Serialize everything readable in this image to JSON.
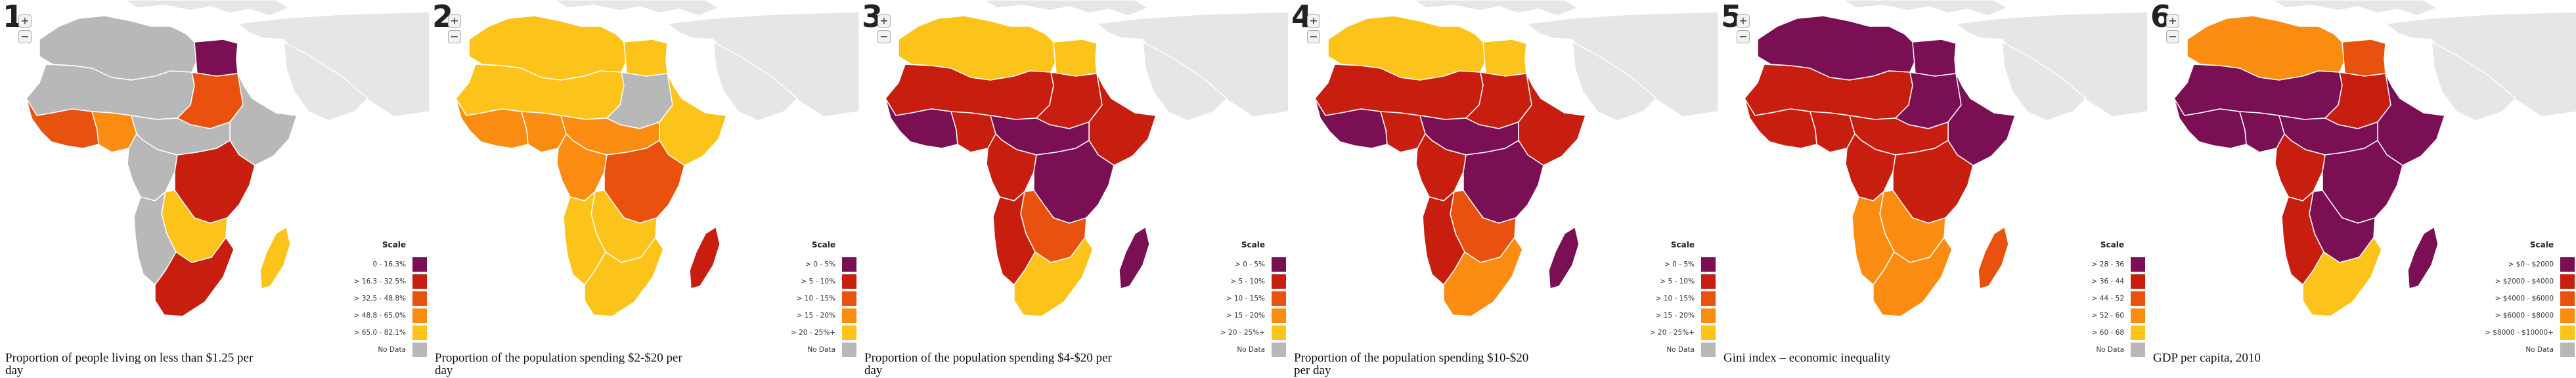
{
  "colors": {
    "ocean": "#ffffff",
    "land": "#e6e6e6",
    "border": "#ffffff",
    "classes": [
      "#7a0f53",
      "#c81e10",
      "#e8520e",
      "#fa8c12",
      "#fcc31a",
      "#b8b8b8"
    ]
  },
  "panels": [
    {
      "number": "1",
      "zoom_in": "+",
      "zoom_out": "−",
      "caption": "Proportion of people living on less than $1.25 per day",
      "legend_title": "Scale",
      "legend": [
        "0 - 16.3%",
        "> 16.3 - 32.5%",
        "> 32.5 - 48.8%",
        "> 48.8 - 65.0%",
        "> 65.0 - 82.1%",
        "No Data"
      ],
      "fills": {
        "maghreb": 5,
        "egypt": 0,
        "sahel": 5,
        "westcoast": 2,
        "nigeria": 3,
        "hornsudan": 2,
        "ethiopia": 5,
        "central": 5,
        "westcentral": 5,
        "eastafrica": 1,
        "southcentral": 4,
        "angolanam": 5,
        "southern": 1,
        "madagascar": 4
      }
    },
    {
      "number": "2",
      "zoom_in": "+",
      "zoom_out": "−",
      "caption": "Proportion of the population spending $2-$20 per day",
      "legend_title": "Scale",
      "legend": [
        "> 0 - 5%",
        "> 5 - 10%",
        "> 10 - 15%",
        "> 15 - 20%",
        "> 20 - 25%+",
        "No Data"
      ],
      "fills": {
        "maghreb": 4,
        "egypt": 4,
        "sahel": 4,
        "westcoast": 3,
        "nigeria": 3,
        "hornsudan": 5,
        "ethiopia": 4,
        "central": 3,
        "westcentral": 3,
        "eastafrica": 2,
        "southcentral": 4,
        "angolanam": 4,
        "southern": 4,
        "madagascar": 1
      }
    },
    {
      "number": "3",
      "zoom_in": "+",
      "zoom_out": "−",
      "caption": "Proportion of the population spending $4-$20 per day",
      "legend_title": "Scale",
      "legend": [
        "> 0 - 5%",
        "> 5 - 10%",
        "> 10 - 15%",
        "> 15 - 20%",
        "> 20 - 25%+",
        "No Data"
      ],
      "fills": {
        "maghreb": 4,
        "egypt": 4,
        "sahel": 1,
        "westcoast": 0,
        "nigeria": 1,
        "hornsudan": 1,
        "ethiopia": 1,
        "central": 0,
        "westcentral": 1,
        "eastafrica": 0,
        "southcentral": 2,
        "angolanam": 1,
        "southern": 4,
        "madagascar": 0
      }
    },
    {
      "number": "4",
      "zoom_in": "+",
      "zoom_out": "−",
      "caption": "Proportion of the population spending $10-$20 per day",
      "legend_title": "Scale",
      "legend": [
        "> 0 - 5%",
        "> 5 - 10%",
        "> 10 - 15%",
        "> 15 - 20%",
        "> 20 - 25%+",
        "No Data"
      ],
      "fills": {
        "maghreb": 4,
        "egypt": 4,
        "sahel": 1,
        "westcoast": 0,
        "nigeria": 1,
        "hornsudan": 1,
        "ethiopia": 1,
        "central": 0,
        "westcentral": 1,
        "eastafrica": 0,
        "southcentral": 2,
        "angolanam": 1,
        "southern": 3,
        "madagascar": 0
      }
    },
    {
      "number": "5",
      "zoom_in": "+",
      "zoom_out": "−",
      "caption": "Gini index – economic inequality",
      "legend_title": "Scale",
      "legend": [
        "> 28 - 36",
        "> 36 - 44",
        "> 44 - 52",
        "> 52 - 60",
        "> 60 - 68",
        "No Data"
      ],
      "fills": {
        "maghreb": 0,
        "egypt": 0,
        "sahel": 1,
        "westcoast": 1,
        "nigeria": 1,
        "hornsudan": 0,
        "ethiopia": 0,
        "central": 1,
        "westcentral": 1,
        "eastafrica": 1,
        "southcentral": 3,
        "angolanam": 3,
        "southern": 3,
        "madagascar": 2
      }
    },
    {
      "number": "6",
      "zoom_in": "+",
      "zoom_out": "−",
      "caption": "GDP per capita, 2010",
      "legend_title": "Scale",
      "legend": [
        "> $0 - $2000",
        "> $2000 - $4000",
        "> $4000 - $6000",
        "> $6000 - $8000",
        "> $8000 - $10000+",
        "No Data"
      ],
      "fills": {
        "maghreb": 3,
        "egypt": 2,
        "sahel": 0,
        "westcoast": 0,
        "nigeria": 0,
        "hornsudan": 1,
        "ethiopia": 0,
        "central": 0,
        "westcentral": 1,
        "eastafrica": 0,
        "southcentral": 0,
        "angolanam": 1,
        "southern": 4,
        "madagascar": 0
      }
    }
  ]
}
